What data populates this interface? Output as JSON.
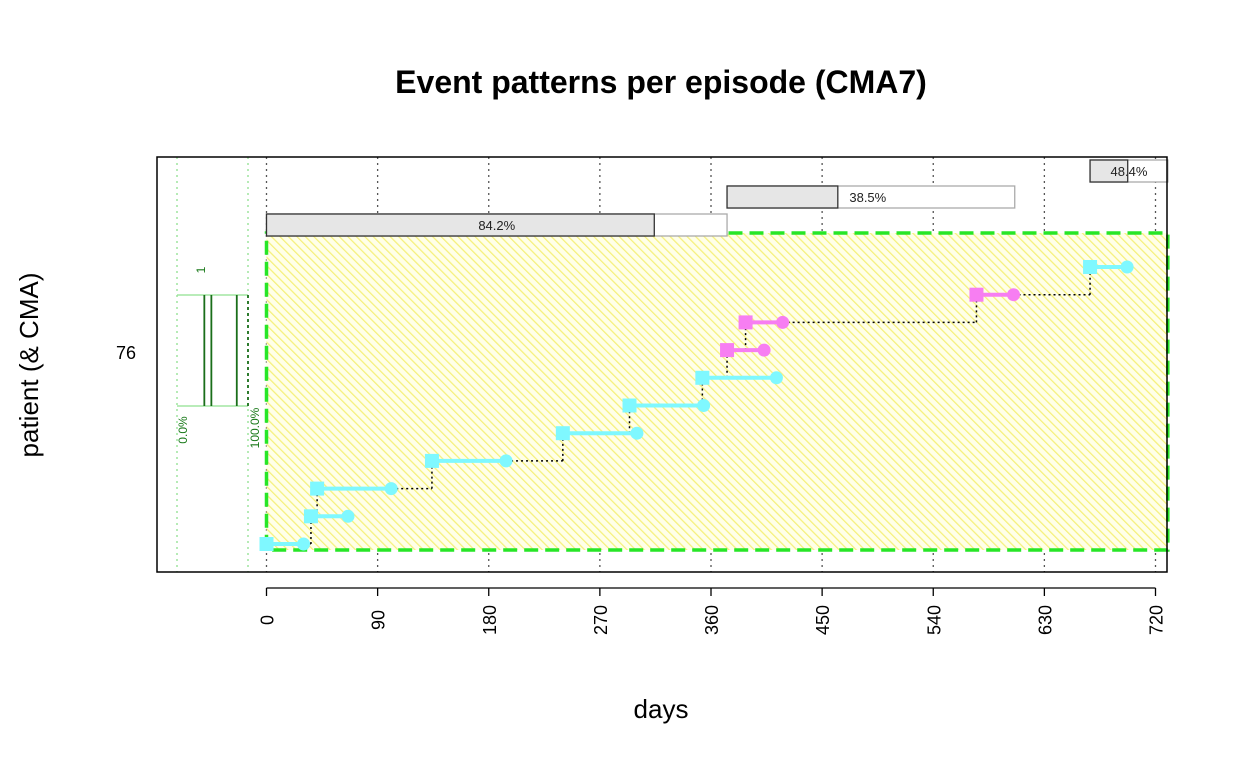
{
  "chart_data": {
    "type": "timeline",
    "title": "Event patterns per episode (CMA7)",
    "xlabel": "days",
    "ylabel": "patient (& CMA)",
    "patient_id": "76",
    "xlim": [
      0,
      720
    ],
    "x_ticks": [
      0,
      90,
      180,
      270,
      360,
      450,
      540,
      630,
      720
    ],
    "grid": "vertical dotted",
    "colors": {
      "medication_A": "#7ff8ff",
      "medication_B": "#f77ef2",
      "episode_border": "#27e627",
      "episode_fill": "#ffff99",
      "cma_bar_fill": "#e6e6e6",
      "histogram_line": "#1a6e1a"
    },
    "events": [
      {
        "medication": "A",
        "start": 0,
        "end": 30
      },
      {
        "medication": "A",
        "start": 36,
        "end": 66
      },
      {
        "medication": "A",
        "start": 41,
        "end": 101
      },
      {
        "medication": "A",
        "start": 134,
        "end": 194
      },
      {
        "medication": "A",
        "start": 240,
        "end": 300
      },
      {
        "medication": "A",
        "start": 294,
        "end": 354
      },
      {
        "medication": "A",
        "start": 353,
        "end": 413
      },
      {
        "medication": "B",
        "start": 373,
        "end": 403
      },
      {
        "medication": "B",
        "start": 388,
        "end": 418
      },
      {
        "medication": "B",
        "start": 575,
        "end": 605
      },
      {
        "medication": "A",
        "start": 667,
        "end": 697
      }
    ],
    "episode": {
      "start": 0,
      "end": 730
    },
    "cma_bars": [
      {
        "start": 0,
        "end": 373,
        "value": 0.842,
        "label": "84.2%"
      },
      {
        "start": 373,
        "end": 606,
        "value": 0.385,
        "label": "38.5%"
      },
      {
        "start": 667,
        "end": 730,
        "value": 0.484,
        "label": "48.4%"
      }
    ],
    "cma_histogram": {
      "count_label": "1",
      "min_label": "0.0%",
      "max_label": "100.0%",
      "bins": [
        0.385,
        0.484,
        0.842
      ]
    }
  }
}
